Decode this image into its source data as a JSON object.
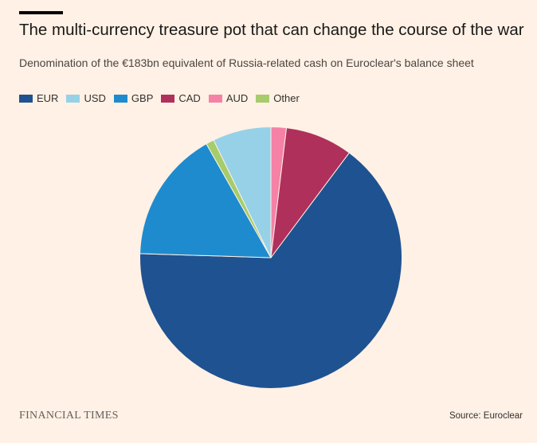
{
  "header": {
    "title": "The multi-currency treasure pot that can change the course of the war",
    "subtitle": "Denomination of the €183bn equivalent of Russia-related cash on Euroclear's balance sheet"
  },
  "footer": {
    "brand": "FINANCIAL TIMES",
    "source": "Source: Euroclear"
  },
  "chart_data": {
    "type": "pie",
    "title": "The multi-currency treasure pot that can change the course of the war",
    "subtitle": "Denomination of the €183bn equivalent of Russia-related cash on Euroclear's balance sheet",
    "legend_position": "top-left",
    "slices": [
      {
        "label": "EUR",
        "value": 65.3,
        "color": "#1f5290"
      },
      {
        "label": "USD",
        "value": 7.2,
        "color": "#96d1e8"
      },
      {
        "label": "GBP",
        "value": 16.3,
        "color": "#1e8bcf"
      },
      {
        "label": "CAD",
        "value": 8.3,
        "color": "#b0305c"
      },
      {
        "label": "AUD",
        "value": 1.9,
        "color": "#f582a6"
      },
      {
        "label": "Other",
        "value": 1.0,
        "color": "#a6cc6b"
      }
    ]
  }
}
